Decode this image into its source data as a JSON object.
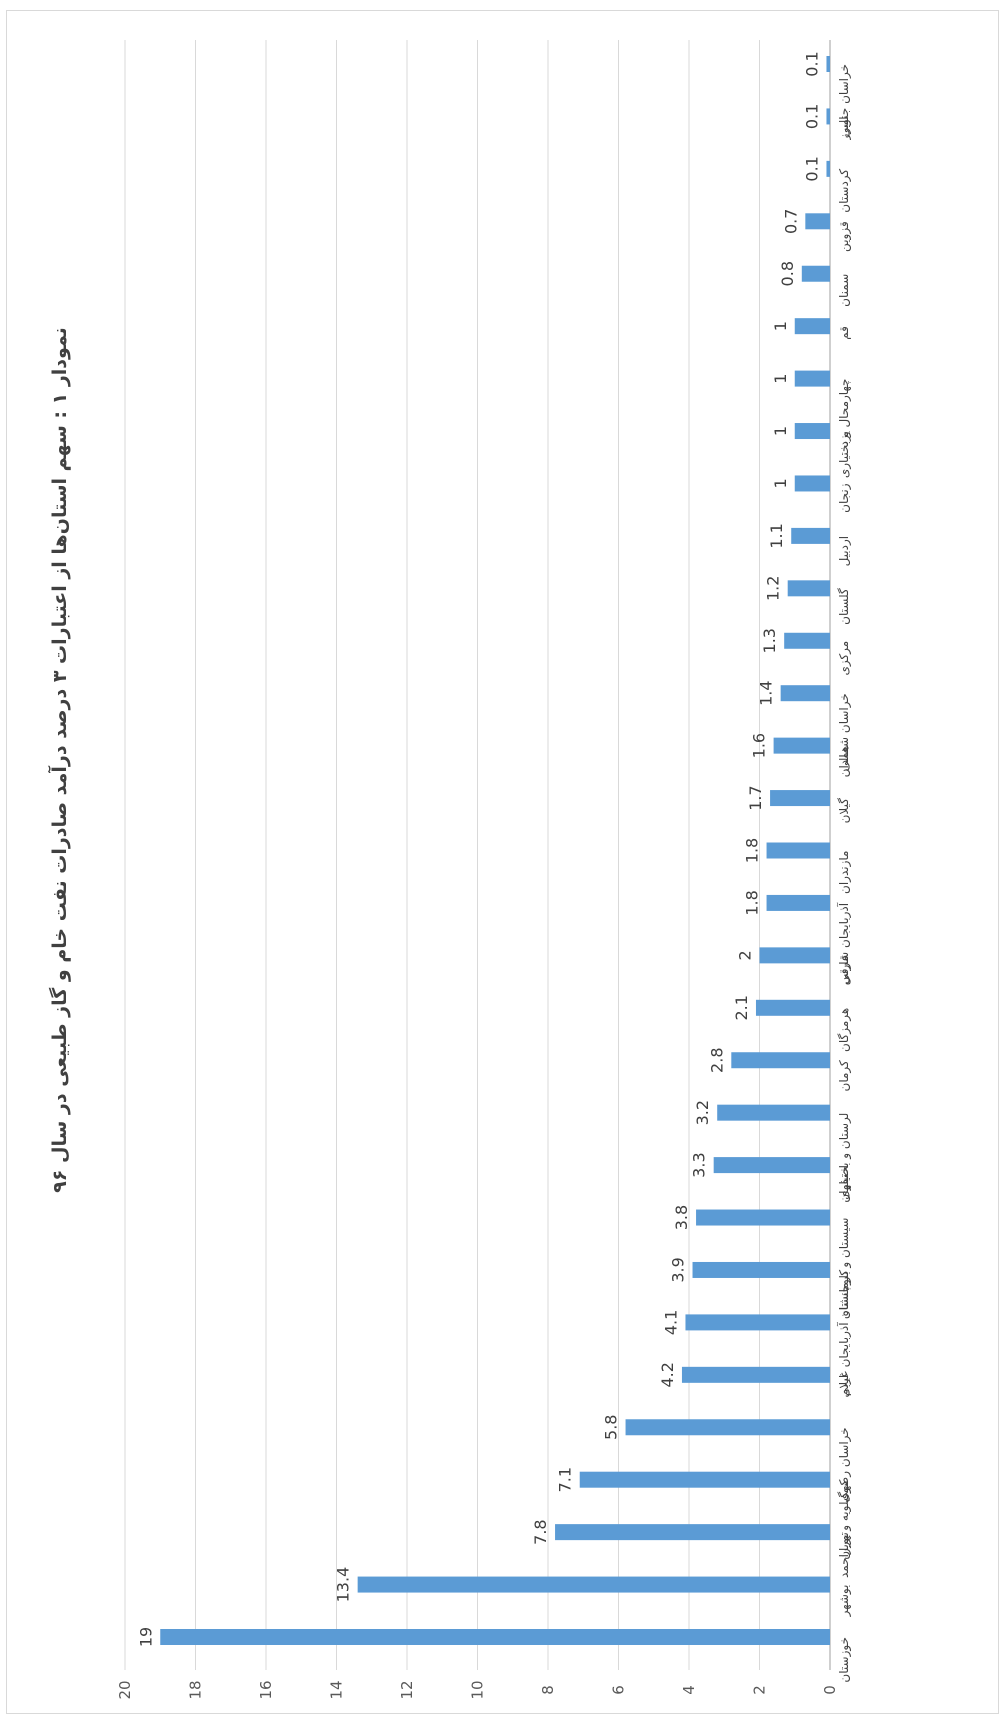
{
  "chart_data": {
    "type": "bar",
    "orientation": "horizontal",
    "title": "نمودار ۱ : سهم استان‌ها از اعتبارات ۳ درصد درآمد صادرات نفت خام و گاز طبیعی در سال ۹۶",
    "xlabel": "",
    "ylabel": "",
    "xlim": [
      0,
      20
    ],
    "xticks": [
      "0",
      "2",
      "4",
      "6",
      "8",
      "10",
      "12",
      "14",
      "16",
      "18",
      "20"
    ],
    "grid": true,
    "legend": "none",
    "bar_color": "#5b9bd5",
    "categories": [
      "خوزستان",
      "بوشهر",
      "تهران",
      "کهگیلویه و بویراحمد",
      "خراسان رضوی",
      "ایلام",
      "آذربایجان غربی",
      "کرمانشاه",
      "سیستان و بلوچستان",
      "اصفهان",
      "لرستان و بختیاری",
      "کرمان",
      "هرمزگان",
      "فارس",
      "آذربایجان شرقی",
      "مازندران",
      "گیلان",
      "همدان",
      "خراسان شمالی",
      "مرکزی",
      "گلستان",
      "اردبیل",
      "زنجان",
      "یزد",
      "چهارمحال و بختیاری",
      "قم",
      "سمنان",
      "قزوین",
      "کردستان",
      "البرز",
      "خراسان جنوبی"
    ],
    "values": [
      19,
      13.4,
      7.8,
      7.1,
      5.8,
      4.2,
      4.1,
      3.9,
      3.8,
      3.3,
      3.2,
      2.8,
      2.1,
      2,
      1.8,
      1.8,
      1.7,
      1.6,
      1.4,
      1.3,
      1.2,
      1.1,
      1,
      1,
      1,
      1,
      0.8,
      0.7,
      0.1,
      0.1,
      0.1
    ],
    "data_labels": [
      "19",
      "13.4",
      "7.8",
      "7.1",
      "5.8",
      "4.2",
      "4.1",
      "3.9",
      "3.8",
      "3.3",
      "3.2",
      "2.8",
      "2.1",
      "2",
      "1.8",
      "1.8",
      "1.7",
      "1.6",
      "1.4",
      "1.3",
      "1.2",
      "1.1",
      "1",
      "1",
      "1",
      "1",
      "0.8",
      "0.7",
      "0.1",
      "0.1",
      "0.1"
    ]
  }
}
